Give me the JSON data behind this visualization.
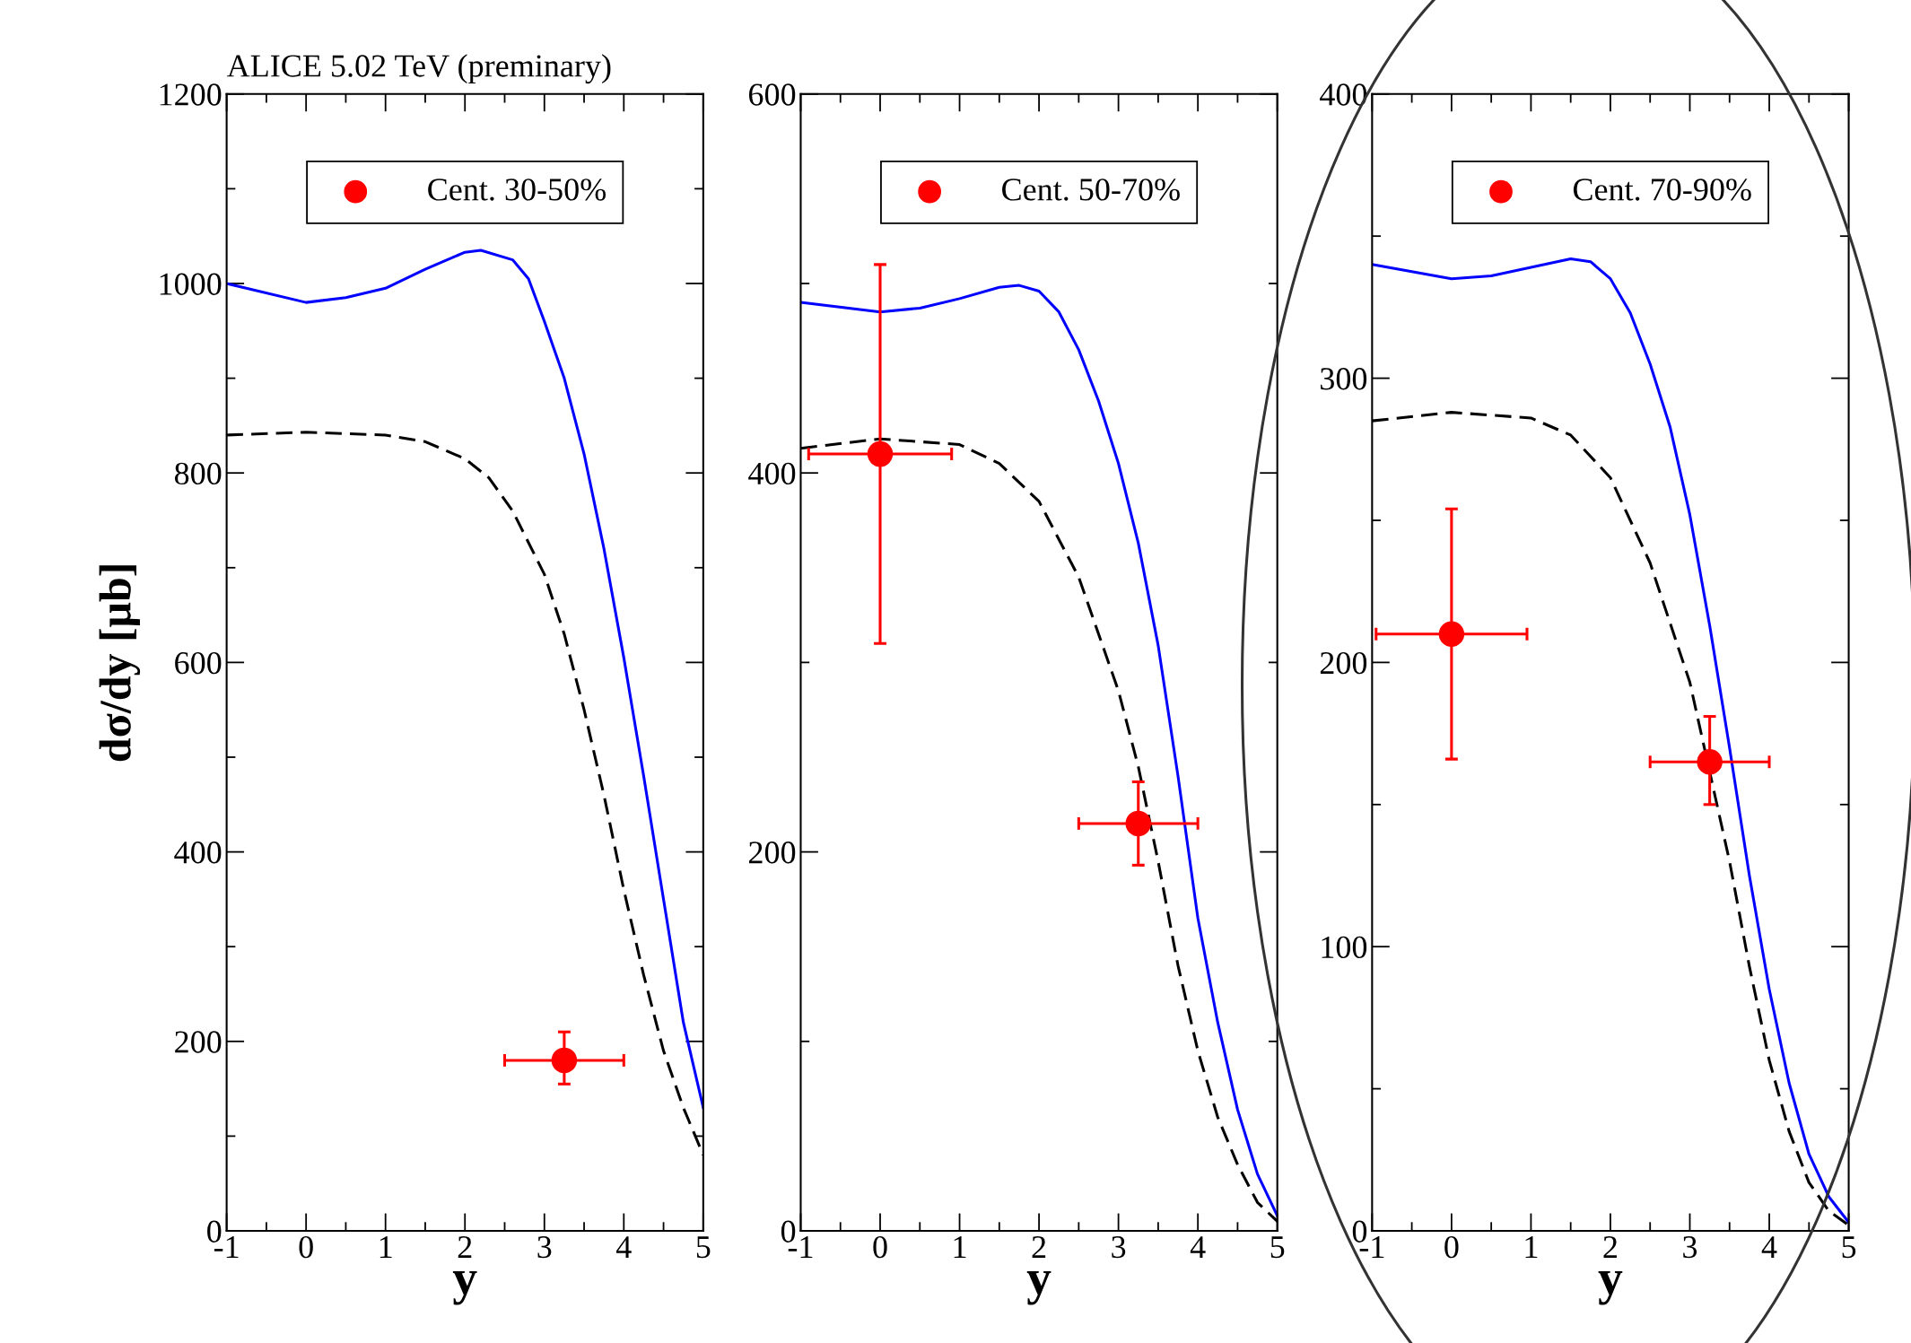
{
  "chart_data": [
    {
      "type": "line",
      "title": "ALICE 5.02 TeV (preminary)",
      "xlabel": "y",
      "ylabel": "dσ/dy [μb]",
      "xlim": [
        -1,
        5
      ],
      "xticks": [
        -1,
        0,
        1,
        2,
        3,
        4,
        5
      ],
      "ylim": [
        0,
        1200
      ],
      "yticks": [
        0,
        200,
        400,
        600,
        800,
        1000,
        1200
      ],
      "grid": false,
      "legend": "top",
      "series": [
        {
          "color": "#0000ff",
          "line_style": "solid",
          "marker": "none",
          "x": [
            -1,
            0,
            0.5,
            1,
            1.5,
            2,
            2.2,
            2.6,
            2.8,
            3,
            3.25,
            3.5,
            3.75,
            4,
            4.25,
            4.5,
            4.75,
            5
          ],
          "values": [
            1000,
            980,
            985,
            995,
            1015,
            1033,
            1035,
            1025,
            1005,
            960,
            900,
            820,
            720,
            605,
            480,
            350,
            220,
            130
          ]
        },
        {
          "color": "#000000",
          "line_style": "dashed",
          "marker": "none",
          "x": [
            -1,
            0,
            1,
            1.5,
            2,
            2.3,
            2.6,
            3,
            3.25,
            3.5,
            3.75,
            4,
            4.25,
            4.5,
            4.75,
            5
          ],
          "values": [
            840,
            843,
            840,
            833,
            815,
            795,
            760,
            693,
            630,
            550,
            460,
            360,
            270,
            190,
            130,
            80
          ]
        },
        {
          "type": "scatter",
          "name": "Cent. 30-50%",
          "color": "#ff0000",
          "marker": "circle",
          "x": [
            3.25
          ],
          "values": [
            180
          ],
          "errors": [
            [
              155,
              210
            ]
          ],
          "xerrors": [
            [
              2.5,
              4.0
            ]
          ]
        }
      ]
    },
    {
      "type": "line",
      "xlabel": "y",
      "xlim": [
        -1,
        5
      ],
      "xticks": [
        -1,
        0,
        1,
        2,
        3,
        4,
        5
      ],
      "ylim": [
        0,
        600
      ],
      "yticks": [
        0,
        200,
        400,
        600
      ],
      "grid": false,
      "legend": "top",
      "series": [
        {
          "color": "#0000ff",
          "line_style": "solid",
          "marker": "none",
          "x": [
            -1,
            0,
            0.5,
            1,
            1.5,
            1.75,
            2,
            2.25,
            2.5,
            2.75,
            3,
            3.25,
            3.5,
            3.75,
            4,
            4.25,
            4.5,
            4.75,
            5
          ],
          "values": [
            490,
            485,
            487,
            492,
            498,
            499,
            496,
            485,
            465,
            438,
            405,
            363,
            309,
            240,
            165,
            110,
            64,
            30,
            8
          ]
        },
        {
          "color": "#000000",
          "line_style": "dashed",
          "marker": "none",
          "x": [
            -1,
            0,
            1,
            1.5,
            2,
            2.5,
            3,
            3.25,
            3.5,
            3.75,
            4,
            4.25,
            4.5,
            4.75,
            5
          ],
          "values": [
            413,
            418,
            415,
            405,
            385,
            345,
            285,
            245,
            195,
            140,
            95,
            60,
            35,
            15,
            5
          ]
        },
        {
          "type": "scatter",
          "name": "Cent. 50-70%",
          "color": "#ff0000",
          "marker": "circle",
          "x": [
            0,
            3.25
          ],
          "values": [
            410,
            215
          ],
          "errors": [
            [
              310,
              510
            ],
            [
              193,
              237
            ]
          ],
          "xerrors": [
            [
              -0.9,
              0.9
            ],
            [
              2.5,
              4.0
            ]
          ]
        }
      ]
    },
    {
      "type": "line",
      "xlabel": "y",
      "xlim": [
        -1,
        5
      ],
      "xticks": [
        -1,
        0,
        1,
        2,
        3,
        4,
        5
      ],
      "ylim": [
        0,
        400
      ],
      "yticks": [
        0,
        100,
        200,
        300,
        400
      ],
      "grid": false,
      "legend": "top",
      "series": [
        {
          "color": "#0000ff",
          "line_style": "solid",
          "marker": "none",
          "x": [
            -1,
            0,
            0.5,
            1,
            1.5,
            1.75,
            2,
            2.25,
            2.5,
            2.75,
            3,
            3.25,
            3.5,
            3.75,
            4,
            4.25,
            4.5,
            4.75,
            5
          ],
          "values": [
            340,
            335,
            336,
            339,
            342,
            341,
            335,
            323,
            305,
            283,
            252,
            213,
            170,
            125,
            85,
            52,
            27,
            12,
            3
          ]
        },
        {
          "color": "#000000",
          "line_style": "dashed",
          "marker": "none",
          "x": [
            -1,
            0,
            1,
            1.5,
            2,
            2.5,
            3,
            3.5,
            3.75,
            4,
            4.25,
            4.5,
            4.75,
            5
          ],
          "values": [
            285,
            288,
            286,
            280,
            265,
            235,
            193,
            130,
            93,
            60,
            35,
            17,
            7,
            2
          ]
        },
        {
          "type": "scatter",
          "name": "Cent. 70-90%",
          "color": "#ff0000",
          "marker": "circle",
          "x": [
            0,
            3.25
          ],
          "values": [
            210,
            165
          ],
          "errors": [
            [
              166,
              254
            ],
            [
              150,
              181
            ]
          ],
          "xerrors": [
            [
              -0.95,
              0.95
            ],
            [
              2.5,
              4.0
            ]
          ]
        }
      ]
    }
  ]
}
